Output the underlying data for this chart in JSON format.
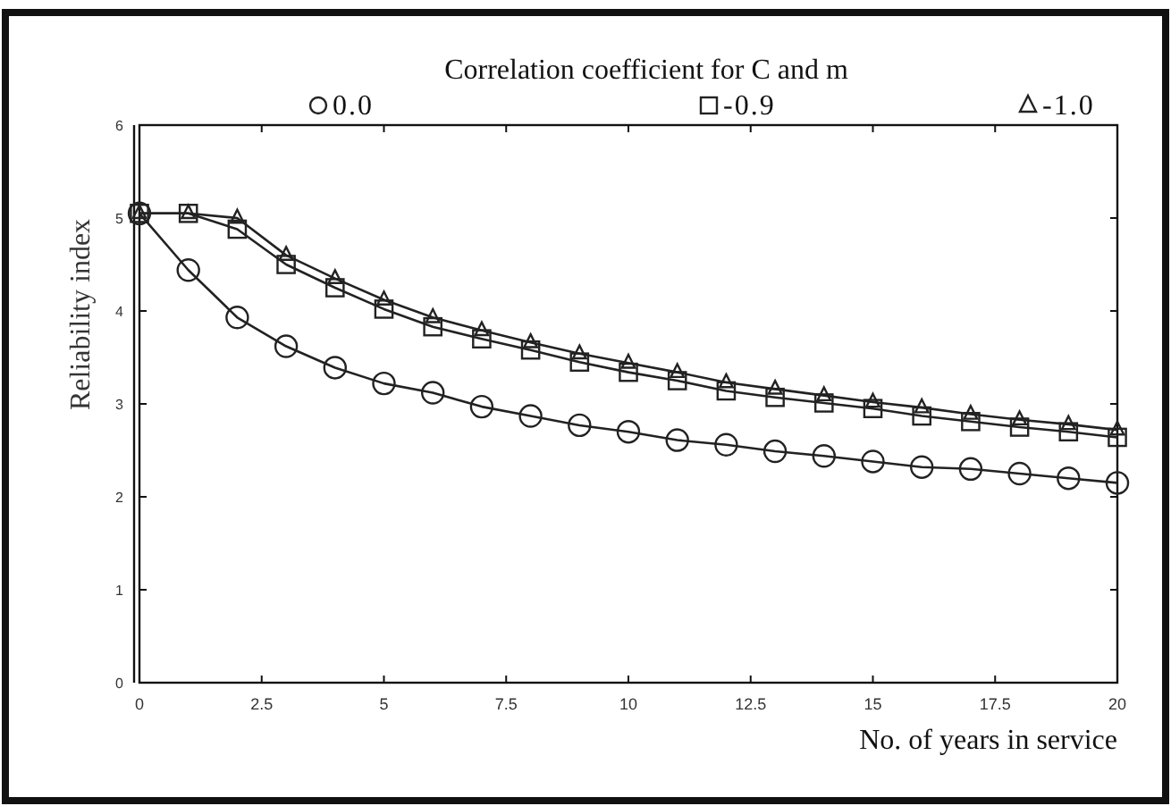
{
  "chart_data": {
    "type": "line",
    "xlabel": "No. of years in service",
    "ylabel": "Reliability index",
    "legend_title": "Correlation coefficient for C and m",
    "legend": "top",
    "grid": false,
    "line_style": "solid",
    "x": [
      0,
      1,
      2,
      3,
      4,
      5,
      6,
      7,
      8,
      9,
      10,
      11,
      12,
      13,
      14,
      15,
      16,
      17,
      18,
      19,
      20
    ],
    "xlim": [
      0,
      20
    ],
    "xticks": [
      0,
      2.5,
      5,
      7.5,
      10,
      12.5,
      15,
      17.5,
      20
    ],
    "ylim": [
      0,
      6
    ],
    "yticks": [
      0,
      1,
      2,
      3,
      4,
      5,
      6
    ],
    "series": [
      {
        "name": "0.0",
        "color": "#222222",
        "marker": "circle",
        "values": [
          5.05,
          4.44,
          3.93,
          3.62,
          3.39,
          3.22,
          3.12,
          2.97,
          2.87,
          2.77,
          2.7,
          2.61,
          2.56,
          2.49,
          2.44,
          2.38,
          2.32,
          2.3,
          2.25,
          2.2,
          2.15
        ]
      },
      {
        "name": "-0.9",
        "color": "#222222",
        "marker": "square",
        "values": [
          5.05,
          5.05,
          4.88,
          4.5,
          4.25,
          4.02,
          3.83,
          3.7,
          3.58,
          3.45,
          3.34,
          3.25,
          3.14,
          3.07,
          3.01,
          2.95,
          2.87,
          2.81,
          2.75,
          2.7,
          2.64
        ]
      },
      {
        "name": "-1.0",
        "color": "#222222",
        "marker": "triangle",
        "values": [
          5.05,
          5.05,
          5.0,
          4.6,
          4.35,
          4.12,
          3.93,
          3.79,
          3.66,
          3.54,
          3.44,
          3.34,
          3.23,
          3.16,
          3.09,
          3.02,
          2.96,
          2.89,
          2.83,
          2.78,
          2.72
        ]
      }
    ]
  }
}
